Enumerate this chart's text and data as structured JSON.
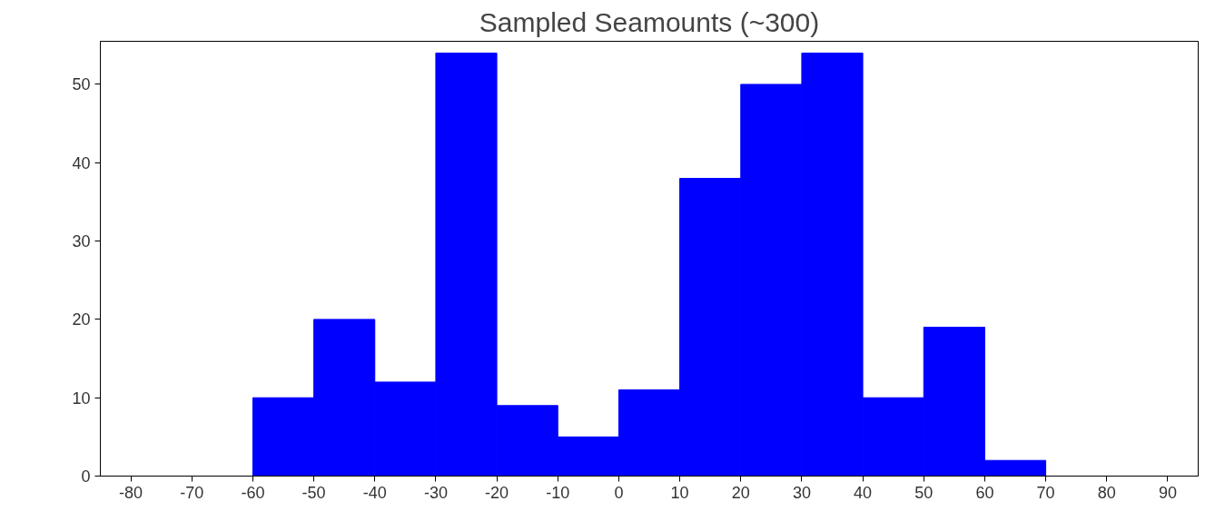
{
  "chart_data": {
    "type": "histogram",
    "title": "Sampled Seamounts (~300)",
    "bins": [
      -60,
      -50,
      -40,
      -30,
      -20,
      -10,
      0,
      10,
      20,
      30,
      40,
      50,
      60,
      70
    ],
    "values": [
      10,
      20,
      12,
      54,
      9,
      5,
      11,
      38,
      50,
      54,
      10,
      19,
      2
    ],
    "color": "#0000ff",
    "xlim": [
      -85,
      95
    ],
    "xticks": [
      -80,
      -70,
      -60,
      -50,
      -40,
      -30,
      -20,
      -10,
      0,
      10,
      20,
      30,
      40,
      50,
      60,
      70,
      80,
      90
    ],
    "ylim": [
      0,
      55.5
    ],
    "yticks": [
      0,
      10,
      20,
      30,
      40,
      50
    ],
    "grid": false
  }
}
